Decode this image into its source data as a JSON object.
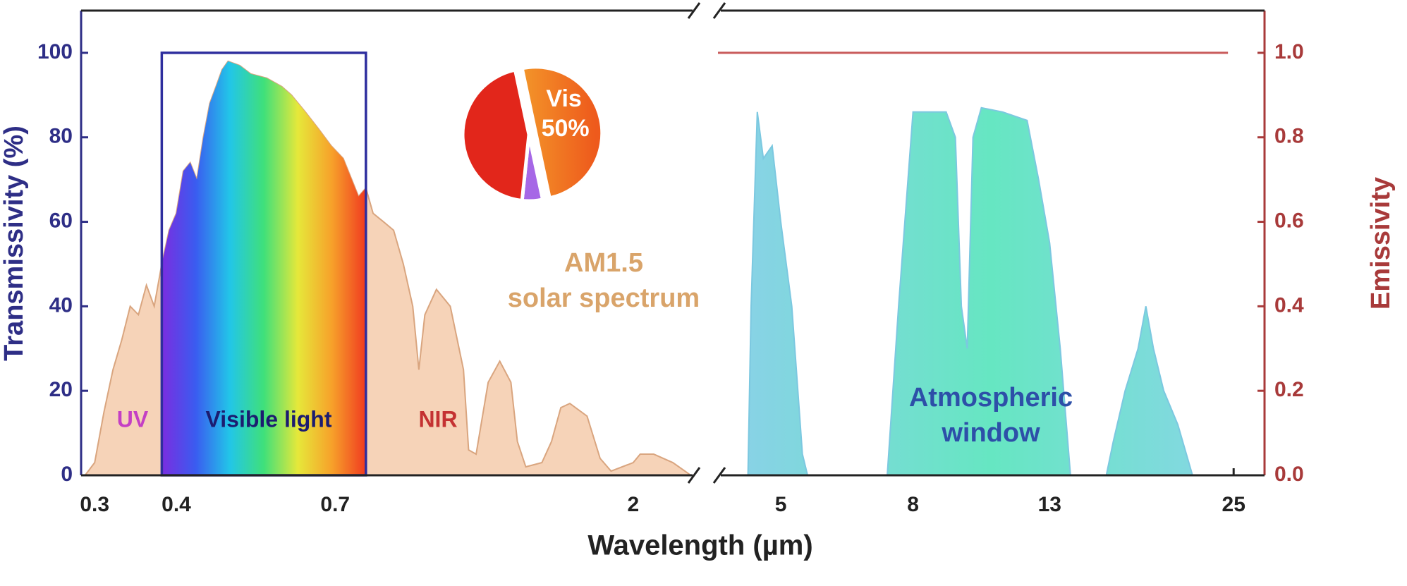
{
  "chart_data": [
    {
      "type": "area",
      "xlabel": "Wavelength (µm)",
      "ylabel": "Transmissivity (%)",
      "xscale": "log",
      "xlim": [
        0.286,
        2.49
      ],
      "xticks": [
        0.3,
        0.4,
        0.7,
        2
      ],
      "ylim": [
        0,
        110
      ],
      "yticks": [
        0,
        20,
        40,
        60,
        80,
        100
      ],
      "axis_color": "#2e2e86",
      "series": [
        {
          "color": "#f6d3b8",
          "edge": "#d9a57f",
          "x": [
            0.29,
            0.3,
            0.31,
            0.32,
            0.33,
            0.34,
            0.35,
            0.36,
            0.37,
            0.38,
            0.39,
            0.4,
            0.41,
            0.42,
            0.43,
            0.44,
            0.45,
            0.46,
            0.47,
            0.48,
            0.5,
            0.52,
            0.55,
            0.58,
            0.6,
            0.63,
            0.66,
            0.69,
            0.72,
            0.76,
            0.78,
            0.8,
            0.83,
            0.86,
            0.89,
            0.92,
            0.94,
            0.96,
            1.0,
            1.05,
            1.1,
            1.12,
            1.15,
            1.2,
            1.25,
            1.3,
            1.33,
            1.37,
            1.45,
            1.5,
            1.55,
            1.6,
            1.7,
            1.78,
            1.85,
            2.0,
            2.05,
            2.15,
            2.3,
            2.4,
            2.45
          ],
          "values": [
            0,
            3,
            15,
            25,
            32,
            40,
            38,
            45,
            40,
            50,
            58,
            62,
            72,
            74,
            70,
            80,
            88,
            92,
            96,
            98,
            97,
            95,
            94,
            92,
            90,
            86,
            82,
            78,
            75,
            66,
            68,
            62,
            60,
            58,
            50,
            40,
            25,
            38,
            44,
            40,
            25,
            6,
            5,
            22,
            27,
            22,
            8,
            2,
            3,
            8,
            16,
            17,
            14,
            4,
            1,
            3,
            5,
            5,
            3,
            1,
            0
          ]
        }
      ],
      "highlight": {
        "xlim": [
          0.38,
          0.78
        ],
        "color": "#2e2e9e",
        "colors": [
          "#7a2de0",
          "#3a5cf0",
          "#22c6e8",
          "#3fe07a",
          "#e6e83a",
          "#f7a12a",
          "#f03a20"
        ]
      },
      "annotations": [
        {
          "text": "UV",
          "color": "#c43fc4"
        },
        {
          "text": "Visible light",
          "color": "#1c1c70"
        },
        {
          "text": "NIR",
          "color": "#c43232"
        }
      ]
    },
    {
      "type": "area",
      "xscale": "log",
      "xlim": [
        4.0,
        27.9
      ],
      "xticks": [
        5,
        8,
        13,
        25
      ],
      "ylim": [
        0,
        110
      ],
      "y2label": "Emissivity",
      "y2lim": [
        0,
        1.1
      ],
      "y2ticks": [
        {
          "value": 0,
          "label": "0.0"
        },
        0.2,
        0.4,
        0.6,
        0.8,
        {
          "value": 1,
          "label": "1.0"
        }
      ],
      "axis2_color": "#a83a3a",
      "series": [
        {
          "colors": [
            "#8cd0ea",
            "#66e6c2",
            "#8cd4ea"
          ],
          "edge": "#7cc8e0",
          "x": [
            4.45,
            4.5,
            4.6,
            4.7,
            4.85,
            5.0,
            5.2,
            5.4,
            5.5,
            6.5,
            7.3,
            7.6,
            8.0,
            8.5,
            9.0,
            9.3,
            9.5,
            9.7,
            9.9,
            10.2,
            11,
            12,
            12.5,
            13,
            13.5,
            14,
            15,
            15.9,
            16.3,
            17,
            17.8,
            18.3,
            18.8,
            19.5,
            20.5,
            21.6
          ],
          "values": [
            0,
            40,
            86,
            75,
            78,
            60,
            40,
            5,
            0,
            null,
            0,
            40,
            86,
            86,
            86,
            80,
            40,
            30,
            80,
            87,
            86,
            84,
            70,
            55,
            30,
            0,
            null,
            0,
            8,
            20,
            30,
            40,
            30,
            20,
            12,
            0
          ]
        },
        {
          "type": "line",
          "axis": "y2",
          "color": "#c85a5a",
          "x": [
            4.0,
            24.5
          ],
          "values": [
            1,
            1
          ]
        }
      ],
      "annotations": [
        {
          "text": "Atmospheric",
          "color": "#2d4fa8"
        },
        {
          "text": "window",
          "color": "#2d4fa8"
        }
      ]
    },
    {
      "type": "pie",
      "categories": [
        "Vis",
        null,
        null
      ],
      "values": [
        50,
        5,
        45
      ],
      "value_labels": [
        "50%",
        null,
        null
      ],
      "colors": [
        [
          "#f7c534",
          "#ee5a1c"
        ],
        "#a667e6",
        "#e2261b"
      ],
      "caption": [
        "AM1.5",
        "solar spectrum"
      ],
      "caption_color": "#d9a46a"
    }
  ]
}
